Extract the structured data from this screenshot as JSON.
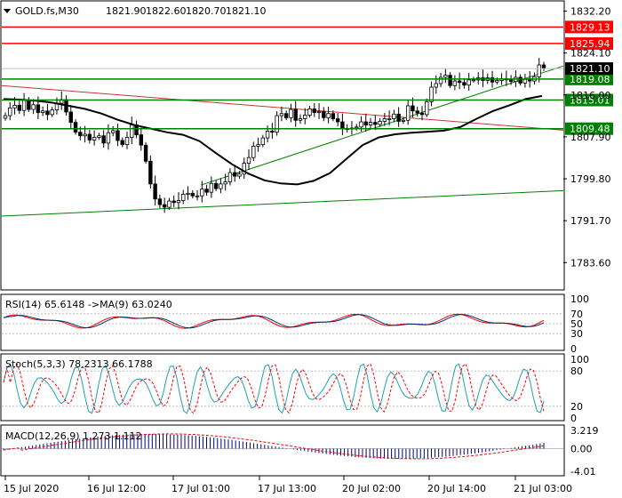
{
  "chart_data": {
    "type": "candlestick",
    "symbol": "GOLD.fs,M30",
    "ohlc": {
      "open": "1821.90",
      "high": "1822.60",
      "low": "1820.70",
      "close": "1821.10"
    },
    "price_axis": {
      "ticks": [
        "1832.20",
        "1824.10",
        "1816.00",
        "1807.90",
        "1799.80",
        "1791.70",
        "1783.60"
      ],
      "ylim": [
        1778.5,
        1834.0
      ]
    },
    "time_axis": {
      "labels": [
        "15 Jul 2020",
        "16 Jul 12:00",
        "17 Jul 01:00",
        "17 Jul 13:00",
        "20 Jul 02:00",
        "20 Jul 14:00",
        "21 Jul 03:00"
      ]
    },
    "levels": [
      {
        "value": 1829.13,
        "label": "1829.13",
        "color": "#ff0000"
      },
      {
        "value": 1825.94,
        "label": "1825.94",
        "color": "#ff0000"
      },
      {
        "value": 1819.08,
        "label": "1819.08",
        "color": "#008000"
      },
      {
        "value": 1815.01,
        "label": "1815.01",
        "color": "#008000"
      },
      {
        "value": 1809.48,
        "label": "1809.48",
        "color": "#008000"
      }
    ],
    "current_price": {
      "value": 1821.1,
      "label": "1821.10"
    },
    "trendlines": [
      {
        "color": "#cc3333",
        "from": [
          0,
          1817.8
        ],
        "to": [
          1,
          1809.2
        ]
      },
      {
        "color": "#008000",
        "from": [
          0.355,
          1798.6
        ],
        "to": [
          1,
          1821.6
        ]
      },
      {
        "color": "#008000",
        "from": [
          0,
          1792.6
        ],
        "to": [
          1,
          1797.5
        ]
      }
    ],
    "candles_close": [
      1812,
      1813.5,
      1814,
      1813,
      1815,
      1813.2,
      1814.1,
      1812.6,
      1812.9,
      1812.2,
      1813.1,
      1814.4,
      1815.1,
      1812.7,
      1810.7,
      1808.8,
      1808.1,
      1808.4,
      1807.3,
      1807.8,
      1808.1,
      1806.7,
      1808.7,
      1809.1,
      1807.2,
      1806.4,
      1807.8,
      1810.2,
      1808.3,
      1806.3,
      1803.2,
      1798.8,
      1795.9,
      1794.8,
      1794.3,
      1795.5,
      1795.2,
      1795.6,
      1796.8,
      1797,
      1796.5,
      1796.5,
      1797.8,
      1797.2,
      1798.9,
      1797.9,
      1798.8,
      1799.2,
      1801,
      1800.3,
      1800.7,
      1802.8,
      1803.9,
      1806.1,
      1806.4,
      1807.7,
      1809,
      1808.8,
      1812,
      1812.4,
      1811.6,
      1813.2,
      1811.1,
      1811.4,
      1812.1,
      1813.3,
      1812.6,
      1812.8,
      1811.6,
      1812.4,
      1811.4,
      1810.8,
      1809.5,
      1809.4,
      1809.6,
      1809.8,
      1810.8,
      1810.2,
      1810.7,
      1810.3,
      1810.9,
      1811.4,
      1811.4,
      1812.3,
      1810.9,
      1811.1,
      1813.9,
      1812.9,
      1812.5,
      1812.2,
      1814.7,
      1817.5,
      1818.2,
      1819.4,
      1819.8,
      1817.8,
      1818.7,
      1818.4,
      1817.9,
      1818.9,
      1818.9,
      1819.3,
      1818.8,
      1819.3,
      1818.5,
      1818.8,
      1819.1,
      1819,
      1818.6,
      1819.4,
      1818.3,
      1819,
      1818.7,
      1819.5,
      1821.8,
      1821.1
    ],
    "ma_black": [
      1815.2,
      1815.1,
      1814.9,
      1814.5,
      1813.9,
      1813.3,
      1812.4,
      1811.2,
      1810.2,
      1809.5,
      1808.8,
      1808.3,
      1807.1,
      1804.8,
      1802.6,
      1800.8,
      1799.5,
      1798.9,
      1798.7,
      1799.4,
      1800.9,
      1803.6,
      1806.3,
      1807.8,
      1808.4,
      1808.7,
      1808.9,
      1809.1,
      1809.8,
      1811.4,
      1812.9,
      1814,
      1815.2,
      1815.8
    ],
    "rsi": {
      "title": "RSI(14) 65.6148 ->MA(9) 63.0240",
      "ticks": [
        "100",
        "70",
        "50",
        "30",
        "0"
      ],
      "levels": [
        70,
        50,
        30
      ]
    },
    "stoch": {
      "title": "Stoch(5,3,3) 78.2313 66.1788",
      "ticks": [
        "100",
        "80",
        "20",
        "0"
      ],
      "levels": [
        80,
        20
      ]
    },
    "macd": {
      "title": "MACD(12,26,9) 1.273 1.112",
      "ticks": [
        "3.219",
        "0.00",
        "-4.01"
      ]
    },
    "colors": {
      "bull_body": "#ffffff",
      "bear_body": "#000000",
      "level_red": "#ff0000",
      "level_green": "#008000",
      "ma_line": "#000000",
      "signal_red": "#ff0000",
      "stoch_main": "#20a0b0",
      "rsi_main": "#003366",
      "macd_bar": "#000080",
      "grid": "#c0c0c0"
    }
  }
}
